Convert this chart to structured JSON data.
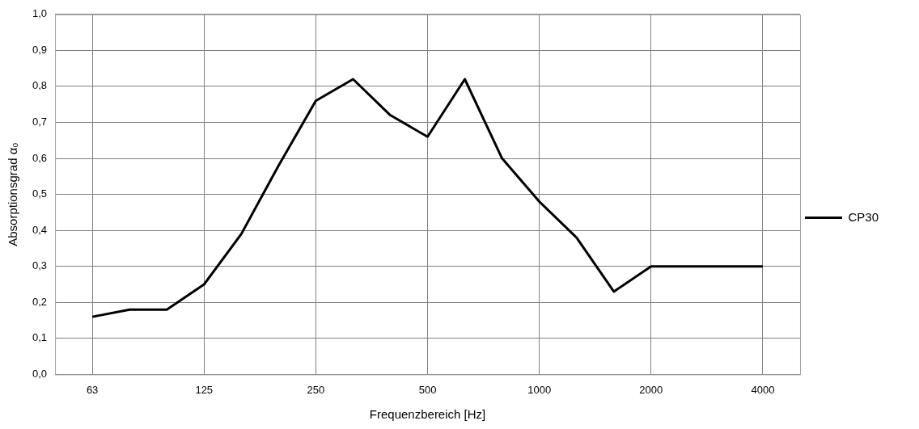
{
  "chart_data": {
    "type": "line",
    "xlabel": "Frequenzbereich [Hz]",
    "ylabel": "Absorptionsgrad α₀",
    "categories": [
      null,
      "63",
      null,
      null,
      "125",
      null,
      null,
      "250",
      null,
      null,
      "500",
      null,
      null,
      "1000",
      null,
      null,
      "2000",
      null,
      null,
      "4000",
      null
    ],
    "series": [
      {
        "name": "CP30",
        "color": "#000000",
        "values": [
          null,
          0.16,
          0.18,
          0.18,
          0.25,
          0.39,
          0.58,
          0.76,
          0.82,
          0.72,
          0.66,
          0.82,
          0.6,
          0.48,
          0.38,
          0.23,
          0.3,
          0.3,
          0.3,
          0.3,
          null
        ]
      }
    ],
    "ylim": [
      0,
      1
    ],
    "yticks": [
      {
        "value": 0,
        "label": "0,0"
      },
      {
        "value": 0.1,
        "label": "0,1"
      },
      {
        "value": 0.2,
        "label": "0,2"
      },
      {
        "value": 0.3,
        "label": "0,3"
      },
      {
        "value": 0.4,
        "label": "0,4"
      },
      {
        "value": 0.5,
        "label": "0,5"
      },
      {
        "value": 0.6,
        "label": "0,6"
      },
      {
        "value": 0.7,
        "label": "0,7"
      },
      {
        "value": 0.8,
        "label": "0,8"
      },
      {
        "value": 0.9,
        "label": "0,9"
      },
      {
        "value": 1,
        "label": "1,0"
      }
    ],
    "grid": true,
    "legend": "right",
    "marker": "none",
    "line_style": "solid"
  }
}
